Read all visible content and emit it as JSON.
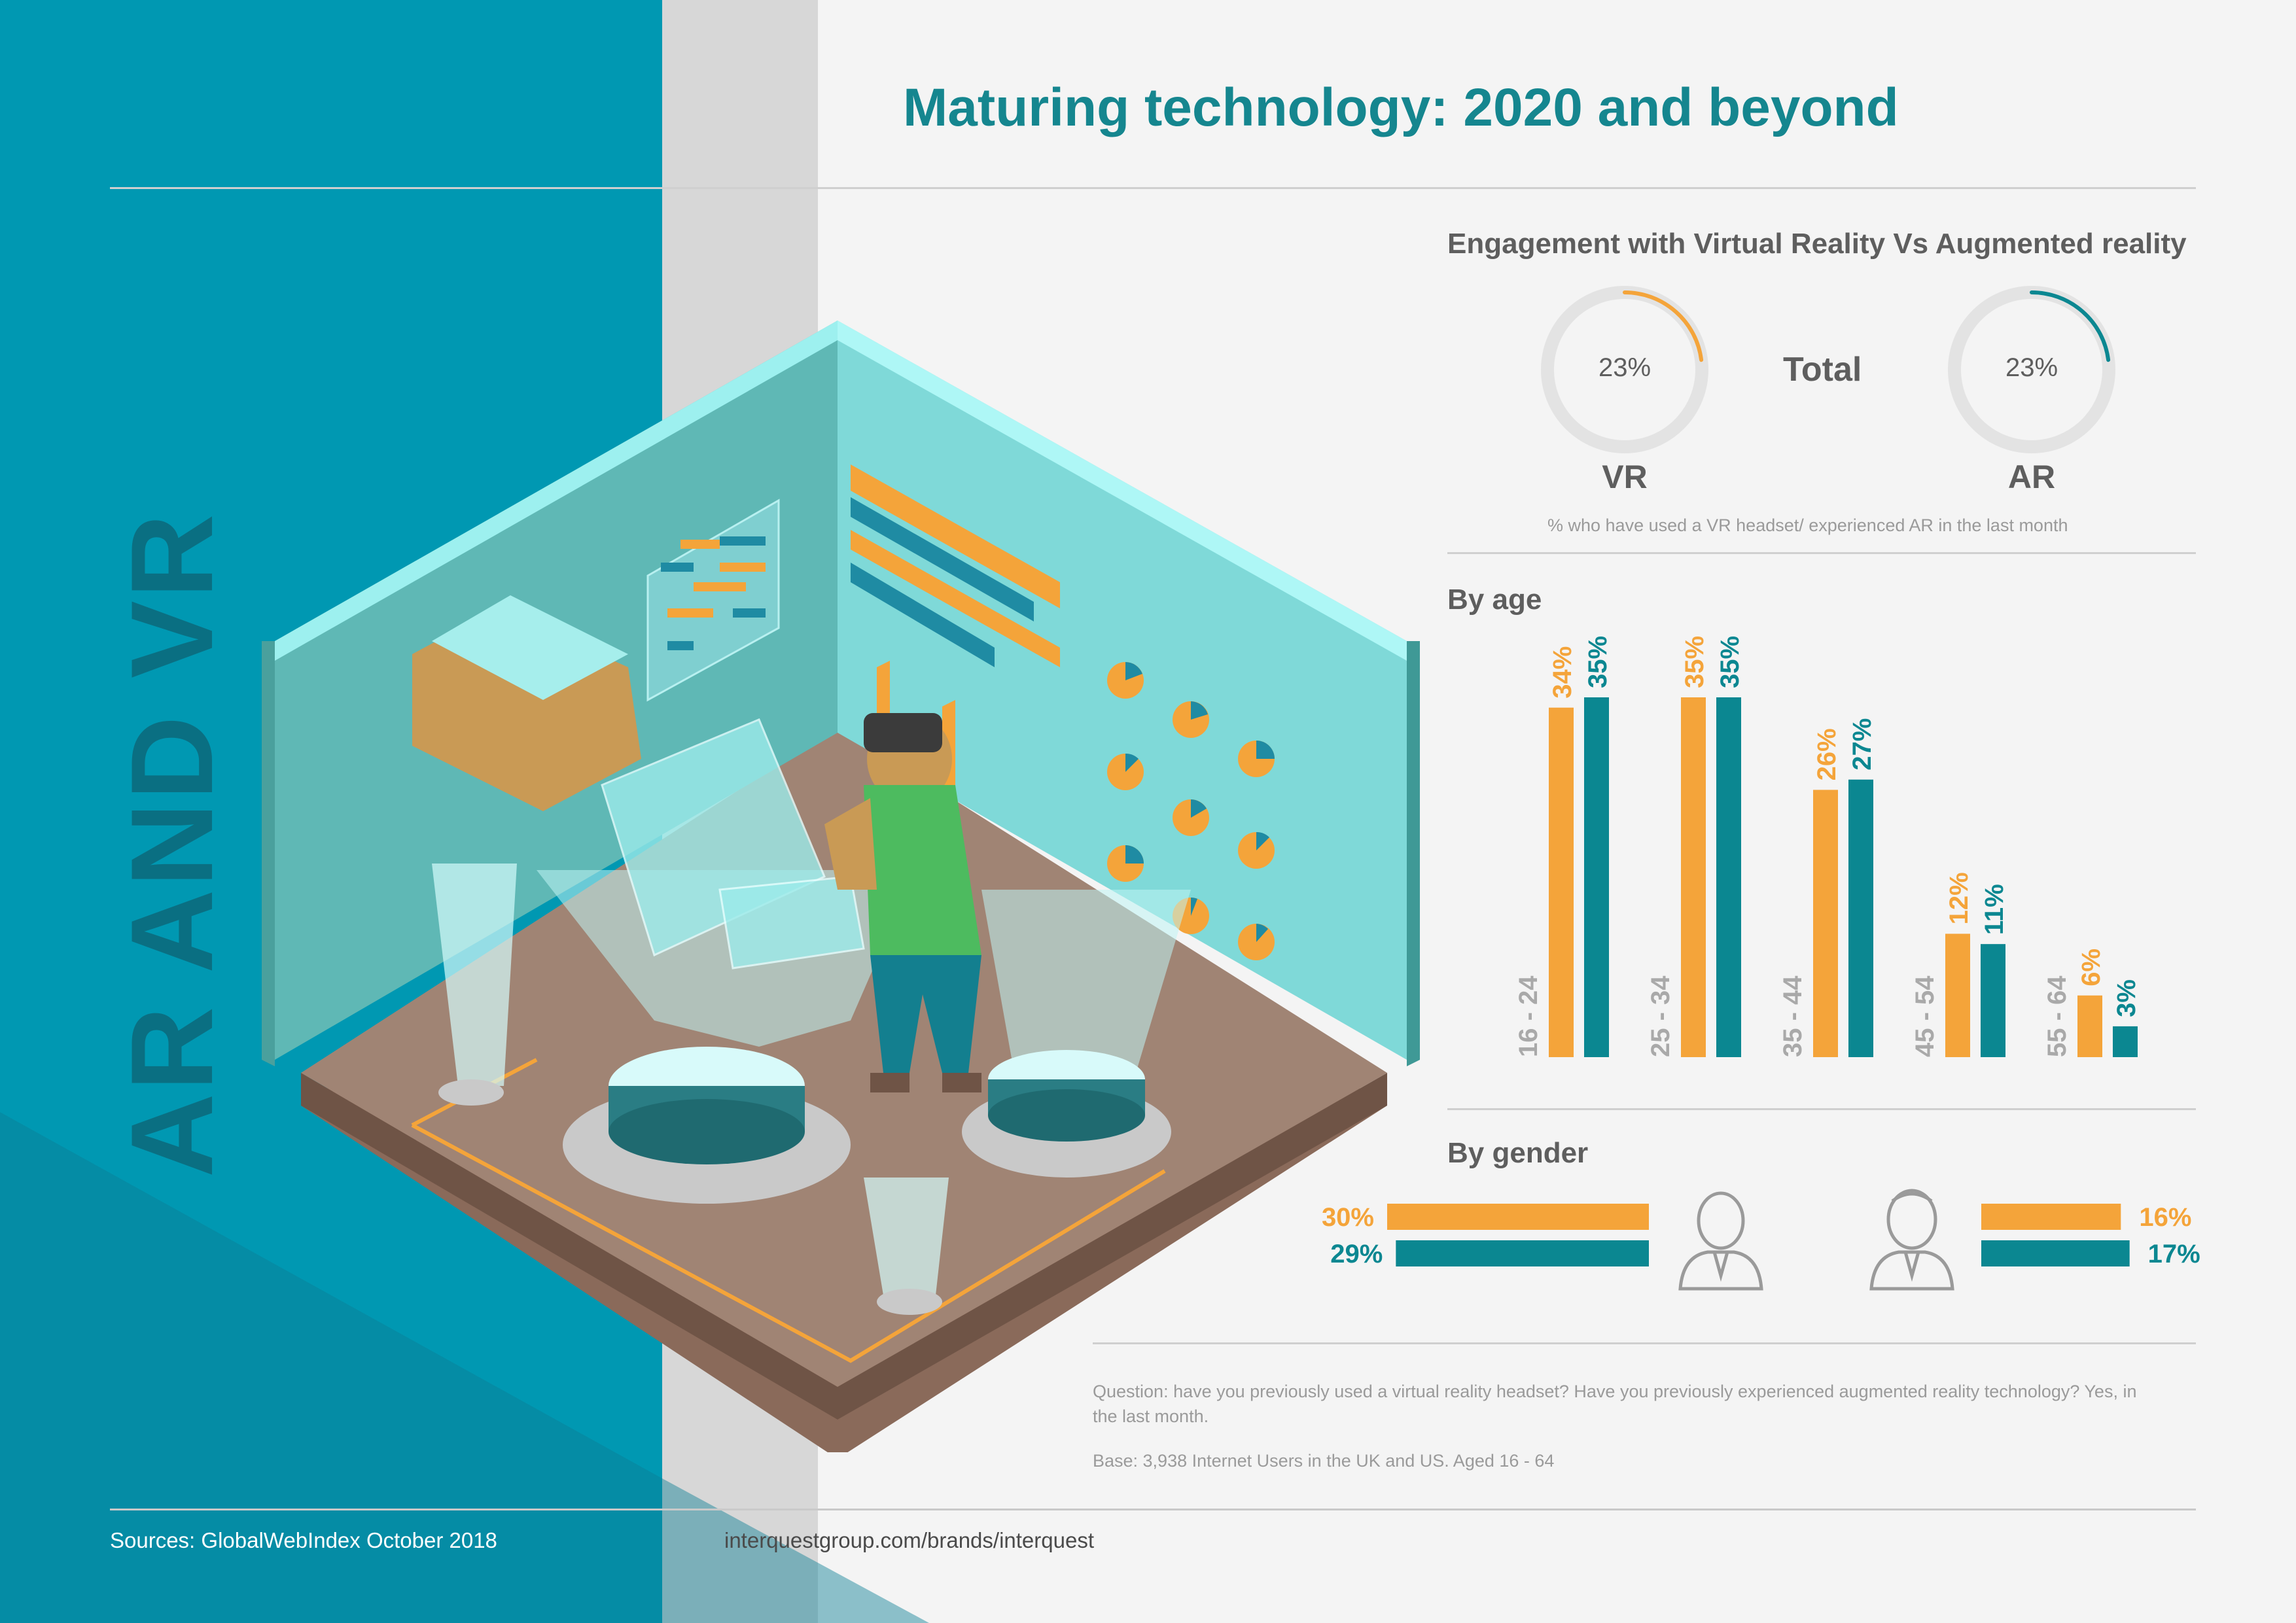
{
  "side_title": "AR AND VR",
  "title": "Maturing technology: 2020 and beyond",
  "colors": {
    "vr": "#f4a43a",
    "ar": "#0b8791",
    "teal_panel": "#0098b2",
    "text": "#5e5e5e"
  },
  "engagement": {
    "heading": "Engagement with Virtual Reality Vs Augmented reality",
    "total_label": "Total",
    "vr": {
      "label": "VR",
      "value_label": "23%"
    },
    "ar": {
      "label": "AR",
      "value_label": "23%"
    },
    "note": "% who have used a VR headset/ experienced AR in the last month"
  },
  "by_age": {
    "heading": "By age"
  },
  "by_gender": {
    "heading": "By gender"
  },
  "footnotes": {
    "question": "Question: have you previously used a virtual reality headset? Have you previously experienced augmented reality technology? Yes, in the last month.",
    "base": "Base: 3,938 Internet  Users in the UK and US. Aged 16 - 64"
  },
  "footer": {
    "sources": "Sources: GlobalWebIndex October 2018",
    "url": "interquestgroup.com/brands/interquest"
  },
  "chart_data": [
    {
      "type": "pie",
      "title": "Engagement with Virtual Reality Vs Augmented reality",
      "categories": [
        "VR",
        "AR"
      ],
      "values": [
        23,
        23
      ],
      "value_labels": [
        "23%",
        "23%"
      ]
    },
    {
      "type": "bar",
      "title": "By age",
      "categories": [
        "16 - 24",
        "25 - 34",
        "35 - 44",
        "45 - 54",
        "55 - 64"
      ],
      "series": [
        {
          "values": [
            34,
            35,
            26,
            12,
            6
          ],
          "labels": [
            "34%",
            "35%",
            "26%",
            "12%",
            "6%"
          ],
          "color": "#f4a43a"
        },
        {
          "values": [
            35,
            35,
            27,
            11,
            3
          ],
          "labels": [
            "35%",
            "35%",
            "27%",
            "11%",
            "3%"
          ],
          "color": "#0b8791"
        }
      ],
      "ylim": [
        0,
        35
      ]
    },
    {
      "type": "bar",
      "title": "By gender",
      "categories": [
        "Male",
        "Female"
      ],
      "series": [
        {
          "values": [
            30,
            16
          ],
          "labels": [
            "30%",
            "16%"
          ],
          "color": "#f4a43a"
        },
        {
          "values": [
            29,
            17
          ],
          "labels": [
            "29%",
            "17%"
          ],
          "color": "#0b8791"
        }
      ]
    }
  ]
}
